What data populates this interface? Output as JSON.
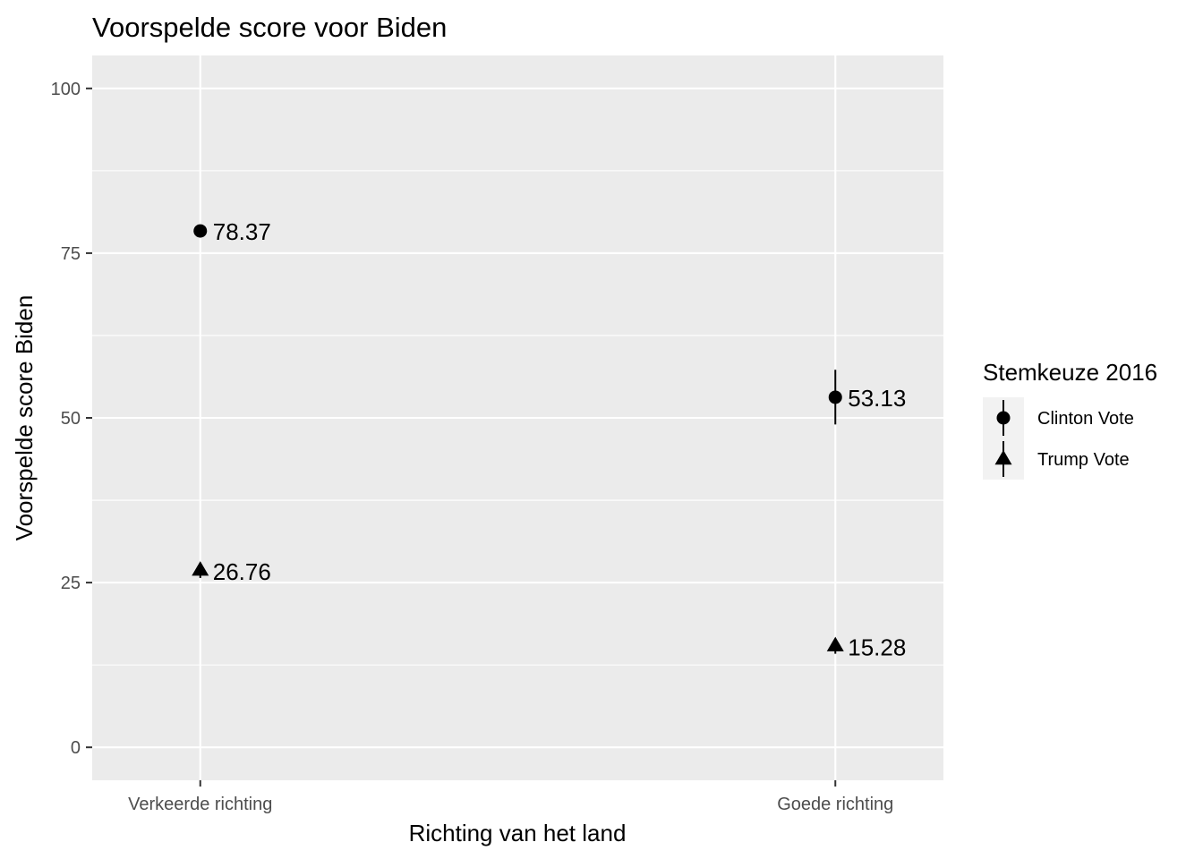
{
  "chart_data": {
    "type": "scatter",
    "title": "Voorspelde score voor Biden",
    "xlabel": "Richting van het land",
    "ylabel": "Voorspelde score Biden",
    "categories": [
      "Verkeerde richting",
      "Goede richting"
    ],
    "ylim": [
      -5,
      105
    ],
    "yticks": [
      0,
      25,
      50,
      75,
      100
    ],
    "grid": true,
    "legend": {
      "title": "Stemkeuze 2016",
      "position": "right"
    },
    "series": [
      {
        "name": "Clinton Vote",
        "shape": "circle",
        "values": [
          78.37,
          53.13
        ],
        "labels": [
          "78.37",
          "53.13"
        ],
        "lower": [
          77.6,
          49.0
        ],
        "upper": [
          79.1,
          57.3
        ]
      },
      {
        "name": "Trump Vote",
        "shape": "triangle",
        "values": [
          26.76,
          15.28
        ],
        "labels": [
          "26.76",
          "15.28"
        ],
        "lower": [
          25.7,
          14.2
        ],
        "upper": [
          27.8,
          16.4
        ]
      }
    ],
    "colors": {
      "panel": "#ebebeb",
      "grid": "#ffffff",
      "points": "#000000"
    }
  }
}
